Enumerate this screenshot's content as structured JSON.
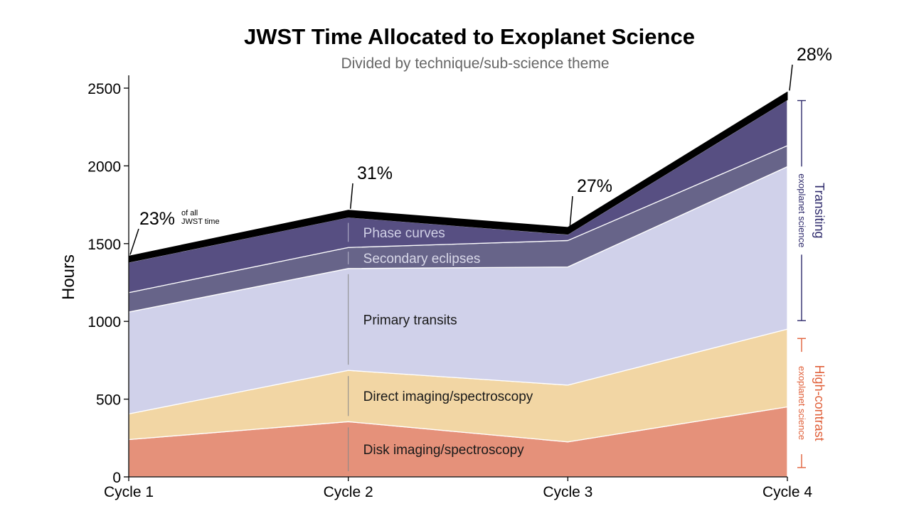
{
  "title": "JWST Time Allocated to Exoplanet Science",
  "subtitle": "Divided by technique/sub-science theme",
  "chart_data": {
    "type": "area",
    "stacked": true,
    "categories": [
      "Cycle 1",
      "Cycle 2",
      "Cycle 3",
      "Cycle 4"
    ],
    "ylabel": "Hours",
    "xlabel": "",
    "ylim": [
      0,
      2580
    ],
    "yticks": [
      0,
      500,
      1000,
      1500,
      2000,
      2500
    ],
    "grid": false,
    "series": [
      {
        "name": "Disk imaging/spectroscopy",
        "values": [
          240,
          355,
          225,
          450
        ],
        "color": "#e5917a"
      },
      {
        "name": "Direct imaging/spectroscopy",
        "values": [
          165,
          330,
          365,
          500
        ],
        "color": "#f2d6a4"
      },
      {
        "name": "Primary transits",
        "values": [
          655,
          655,
          760,
          1045
        ],
        "color": "#d0d1ea"
      },
      {
        "name": "Secondary eclipses",
        "values": [
          125,
          135,
          170,
          135
        ],
        "color": "#676489"
      },
      {
        "name": "Phase curves",
        "values": [
          195,
          195,
          40,
          295
        ],
        "color": "#574f82"
      },
      {
        "name": "",
        "values": [
          40,
          45,
          45,
          50
        ],
        "color": "#000000"
      }
    ],
    "totals_pct_labels": [
      "23%",
      "31%",
      "27%",
      "28%"
    ],
    "pct_note": [
      "of all",
      "JWST time"
    ],
    "brackets": [
      {
        "main": "Transiting",
        "sub": "exoplanet science",
        "from": 1005,
        "to": 2420,
        "color": "#2e2a6b"
      },
      {
        "main": "High-contrast",
        "sub": "exoplanet science",
        "from": 60,
        "to": 890,
        "color": "#e0603a"
      }
    ]
  }
}
